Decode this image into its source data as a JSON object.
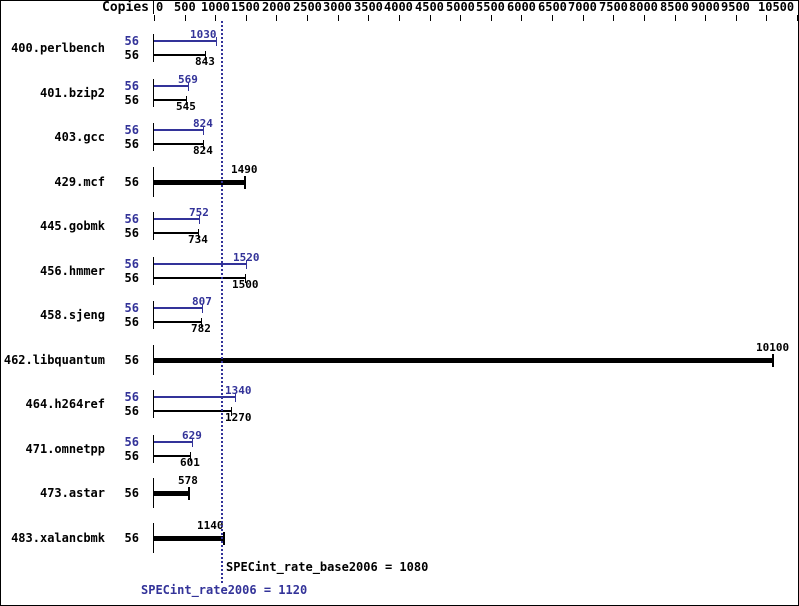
{
  "colors": {
    "peak_blue": "#333399",
    "base_black": "#000000",
    "background": "#ffffff"
  },
  "header": {
    "copies_label": "Copies"
  },
  "chart_data": {
    "type": "bar",
    "orientation": "horizontal",
    "axis_title": "Copies",
    "xlim": [
      0,
      10500
    ],
    "tick_step": 500,
    "tick_labels": [
      "0",
      "500",
      "1000",
      "1500",
      "2000",
      "2500",
      "3000",
      "3500",
      "4000",
      "4500",
      "5000",
      "5500",
      "6000",
      "6500",
      "7000",
      "7500",
      "8000",
      "8500",
      "9000",
      "9500",
      "",
      "10500"
    ],
    "grid": false,
    "legend": "none",
    "benchmarks": [
      {
        "name": "400.perlbench",
        "bars": [
          {
            "kind": "peak",
            "copies": "56",
            "value": 1030
          },
          {
            "kind": "base",
            "copies": "56",
            "value": 843
          }
        ]
      },
      {
        "name": "401.bzip2",
        "bars": [
          {
            "kind": "peak",
            "copies": "56",
            "value": 569
          },
          {
            "kind": "base",
            "copies": "56",
            "value": 545
          }
        ]
      },
      {
        "name": "403.gcc",
        "bars": [
          {
            "kind": "peak",
            "copies": "56",
            "value": 824
          },
          {
            "kind": "base",
            "copies": "56",
            "value": 824
          }
        ]
      },
      {
        "name": "429.mcf",
        "bars": [
          {
            "kind": "base",
            "copies": "56",
            "value": 1490
          }
        ]
      },
      {
        "name": "445.gobmk",
        "bars": [
          {
            "kind": "peak",
            "copies": "56",
            "value": 752
          },
          {
            "kind": "base",
            "copies": "56",
            "value": 734
          }
        ]
      },
      {
        "name": "456.hmmer",
        "bars": [
          {
            "kind": "peak",
            "copies": "56",
            "value": 1520
          },
          {
            "kind": "base",
            "copies": "56",
            "value": 1500
          }
        ]
      },
      {
        "name": "458.sjeng",
        "bars": [
          {
            "kind": "peak",
            "copies": "56",
            "value": 807
          },
          {
            "kind": "base",
            "copies": "56",
            "value": 782
          }
        ]
      },
      {
        "name": "462.libquantum",
        "bars": [
          {
            "kind": "base",
            "copies": "56",
            "value": 10100
          }
        ]
      },
      {
        "name": "464.h264ref",
        "bars": [
          {
            "kind": "peak",
            "copies": "56",
            "value": 1340
          },
          {
            "kind": "base",
            "copies": "56",
            "value": 1270
          }
        ]
      },
      {
        "name": "471.omnetpp",
        "bars": [
          {
            "kind": "peak",
            "copies": "56",
            "value": 629
          },
          {
            "kind": "base",
            "copies": "56",
            "value": 601
          }
        ]
      },
      {
        "name": "473.astar",
        "bars": [
          {
            "kind": "base",
            "copies": "56",
            "value": 578
          }
        ]
      },
      {
        "name": "483.xalancbmk",
        "bars": [
          {
            "kind": "base",
            "copies": "56",
            "value": 1140
          }
        ]
      }
    ]
  },
  "summary": {
    "base_text": "SPECint_rate_base2006 = 1080",
    "peak_text": "SPECint_rate2006 = 1120",
    "base_value": 1080,
    "peak_value": 1120,
    "reference_line_value": 1120
  }
}
